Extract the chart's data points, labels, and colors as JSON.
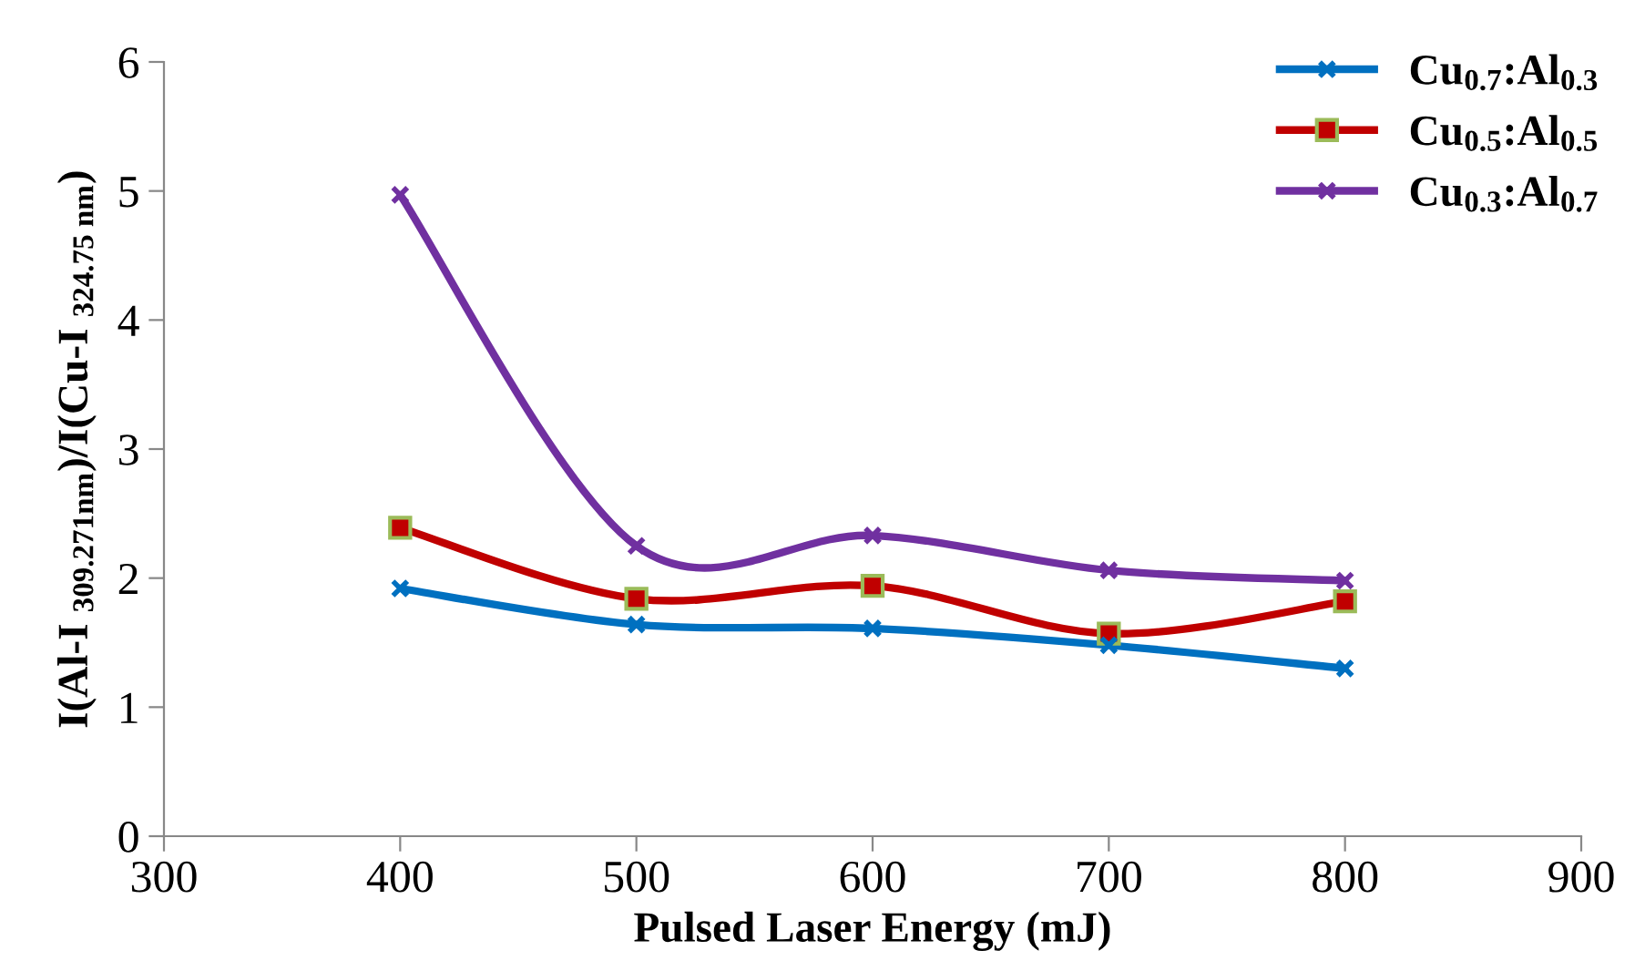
{
  "chart_data": {
    "type": "line",
    "xlabel": "Pulsed Laser Energy (mJ)",
    "ylabel": "I(Al-I $_{309.271nm}$)/I(Cu-I $_{324.75 nm}$)",
    "x": [
      400,
      500,
      600,
      700,
      800
    ],
    "series": [
      {
        "name": "Cu$_{0.7}$:Al$_{0.3}$",
        "color": "#0070c0",
        "marker": "cross",
        "values": [
          1.92,
          1.64,
          1.61,
          1.48,
          1.3
        ]
      },
      {
        "name": "Cu$_{0.5}$:Al$_{0.5}$",
        "color": "#c00000",
        "marker": "square",
        "values": [
          2.39,
          1.84,
          1.94,
          1.57,
          1.82
        ]
      },
      {
        "name": "Cu$_{0.3}$:Al$_{0.7}$",
        "color": "#7030a0",
        "marker": "cross",
        "values": [
          4.97,
          2.25,
          2.33,
          2.06,
          1.98
        ]
      }
    ],
    "xlim": [
      300,
      900
    ],
    "xticks": [
      300,
      400,
      500,
      600,
      700,
      800,
      900
    ],
    "ylim": [
      0,
      6
    ],
    "yticks": [
      0,
      1,
      2,
      3,
      4,
      5,
      6
    ],
    "grid": false,
    "legend": "top right",
    "line_style": "solid"
  }
}
